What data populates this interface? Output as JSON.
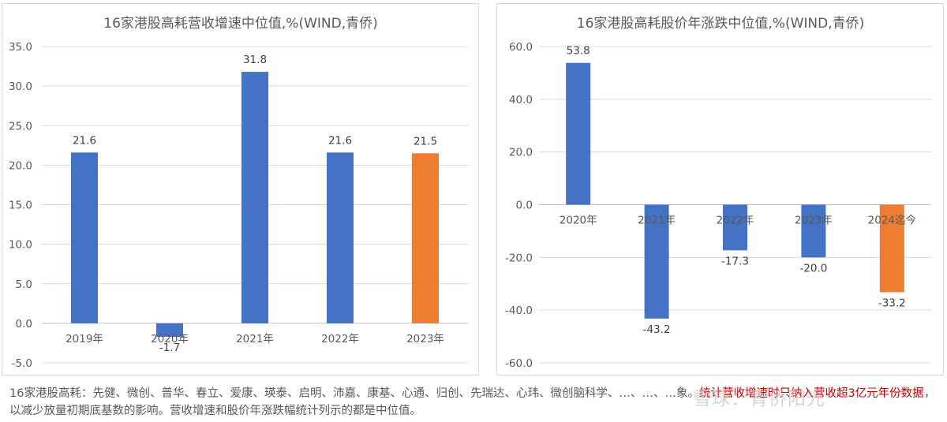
{
  "chart_data": [
    {
      "type": "bar",
      "title": "16家港股高耗营收增速中位值,%(WIND,青侨)",
      "categories": [
        "2019年",
        "2020年",
        "2021年",
        "2022年",
        "2023年"
      ],
      "values": [
        21.6,
        -1.7,
        31.8,
        21.6,
        21.5
      ],
      "data_labels": [
        "21.6",
        "-1.7",
        "31.8",
        "21.6",
        "21.5"
      ],
      "ylim": [
        -5,
        35
      ],
      "yticks": [
        -5,
        0,
        5,
        10,
        15,
        20,
        25,
        30,
        35
      ],
      "ytick_labels": [
        "-5.0",
        "0.0",
        "5.0",
        "10.0",
        "15.0",
        "20.0",
        "25.0",
        "30.0",
        "35.0"
      ],
      "bar_colors": [
        "#4472c4",
        "#4472c4",
        "#4472c4",
        "#4472c4",
        "#ed7d31"
      ],
      "grid": true,
      "xlabel": "",
      "ylabel": ""
    },
    {
      "type": "bar",
      "title": "16家港股高耗股价年涨跌中位值,%(WIND,青侨)",
      "categories": [
        "2020年",
        "2021年",
        "2022年",
        "2023年",
        "2024迄今"
      ],
      "values": [
        53.8,
        -43.2,
        -17.3,
        -20.0,
        -33.2
      ],
      "data_labels": [
        "53.8",
        "-43.2",
        "-17.3",
        "-20.0",
        "-33.2"
      ],
      "ylim": [
        -60,
        60
      ],
      "yticks": [
        -60,
        -40,
        -20,
        0,
        20,
        40,
        60
      ],
      "ytick_labels": [
        "-60.0",
        "-40.0",
        "-20.0",
        "0.0",
        "20.0",
        "40.0",
        "60.0"
      ],
      "bar_colors": [
        "#4472c4",
        "#4472c4",
        "#4472c4",
        "#4472c4",
        "#ed7d31"
      ],
      "grid": true,
      "xlabel": "",
      "ylabel": ""
    }
  ],
  "footnote": {
    "part1": "16家港股高耗：先健、微创、普华、春立、爱康、瑛泰、启明、沛嘉、康基、心通、归创、先瑞达、心玮、微创脑科学、…、…、…象。",
    "part2": "统计营收增速时只纳入营收超3亿元年份数据",
    "part3": "，以减少放量初期底基数的影响。营收增速和股价年涨跌幅统计列示的都是中位值。"
  },
  "watermark": "雪球：青侨阳光"
}
